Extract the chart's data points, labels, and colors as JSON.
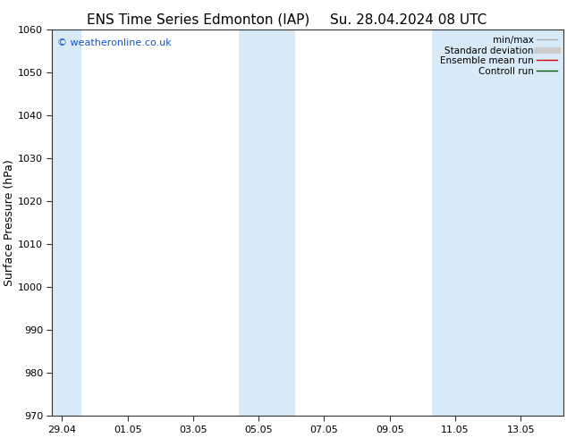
{
  "title_left": "ENS Time Series Edmonton (IAP)",
  "title_right": "Su. 28.04.2024 08 UTC",
  "ylabel": "Surface Pressure (hPa)",
  "ylim": [
    970,
    1060
  ],
  "yticks": [
    970,
    980,
    990,
    1000,
    1010,
    1020,
    1030,
    1040,
    1050,
    1060
  ],
  "xtick_labels": [
    "29.04",
    "01.05",
    "03.05",
    "05.05",
    "07.05",
    "09.05",
    "11.05",
    "13.05"
  ],
  "xtick_positions": [
    0,
    2,
    4,
    6,
    8,
    10,
    12,
    14
  ],
  "xlim": [
    -0.3,
    15.3
  ],
  "shaded_bands": [
    {
      "x_start": -0.3,
      "x_end": 0.6
    },
    {
      "x_start": 5.4,
      "x_end": 7.1
    },
    {
      "x_start": 11.3,
      "x_end": 15.3
    }
  ],
  "shade_color": "#d8eaf7",
  "watermark_text": "© weatheronline.co.uk",
  "watermark_color": "#1155cc",
  "legend_items": [
    {
      "label": "min/max",
      "color": "#aaaaaa",
      "lw": 1.0
    },
    {
      "label": "Standard deviation",
      "color": "#cccccc",
      "lw": 5.0
    },
    {
      "label": "Ensemble mean run",
      "color": "#dd0000",
      "lw": 1.0
    },
    {
      "label": "Controll run",
      "color": "#005500",
      "lw": 1.0
    }
  ],
  "bg_color": "#ffffff",
  "spine_color": "#333333",
  "tick_color": "#333333",
  "title_fontsize": 11,
  "ylabel_fontsize": 9,
  "tick_fontsize": 8,
  "legend_fontsize": 7.5,
  "watermark_fontsize": 8
}
